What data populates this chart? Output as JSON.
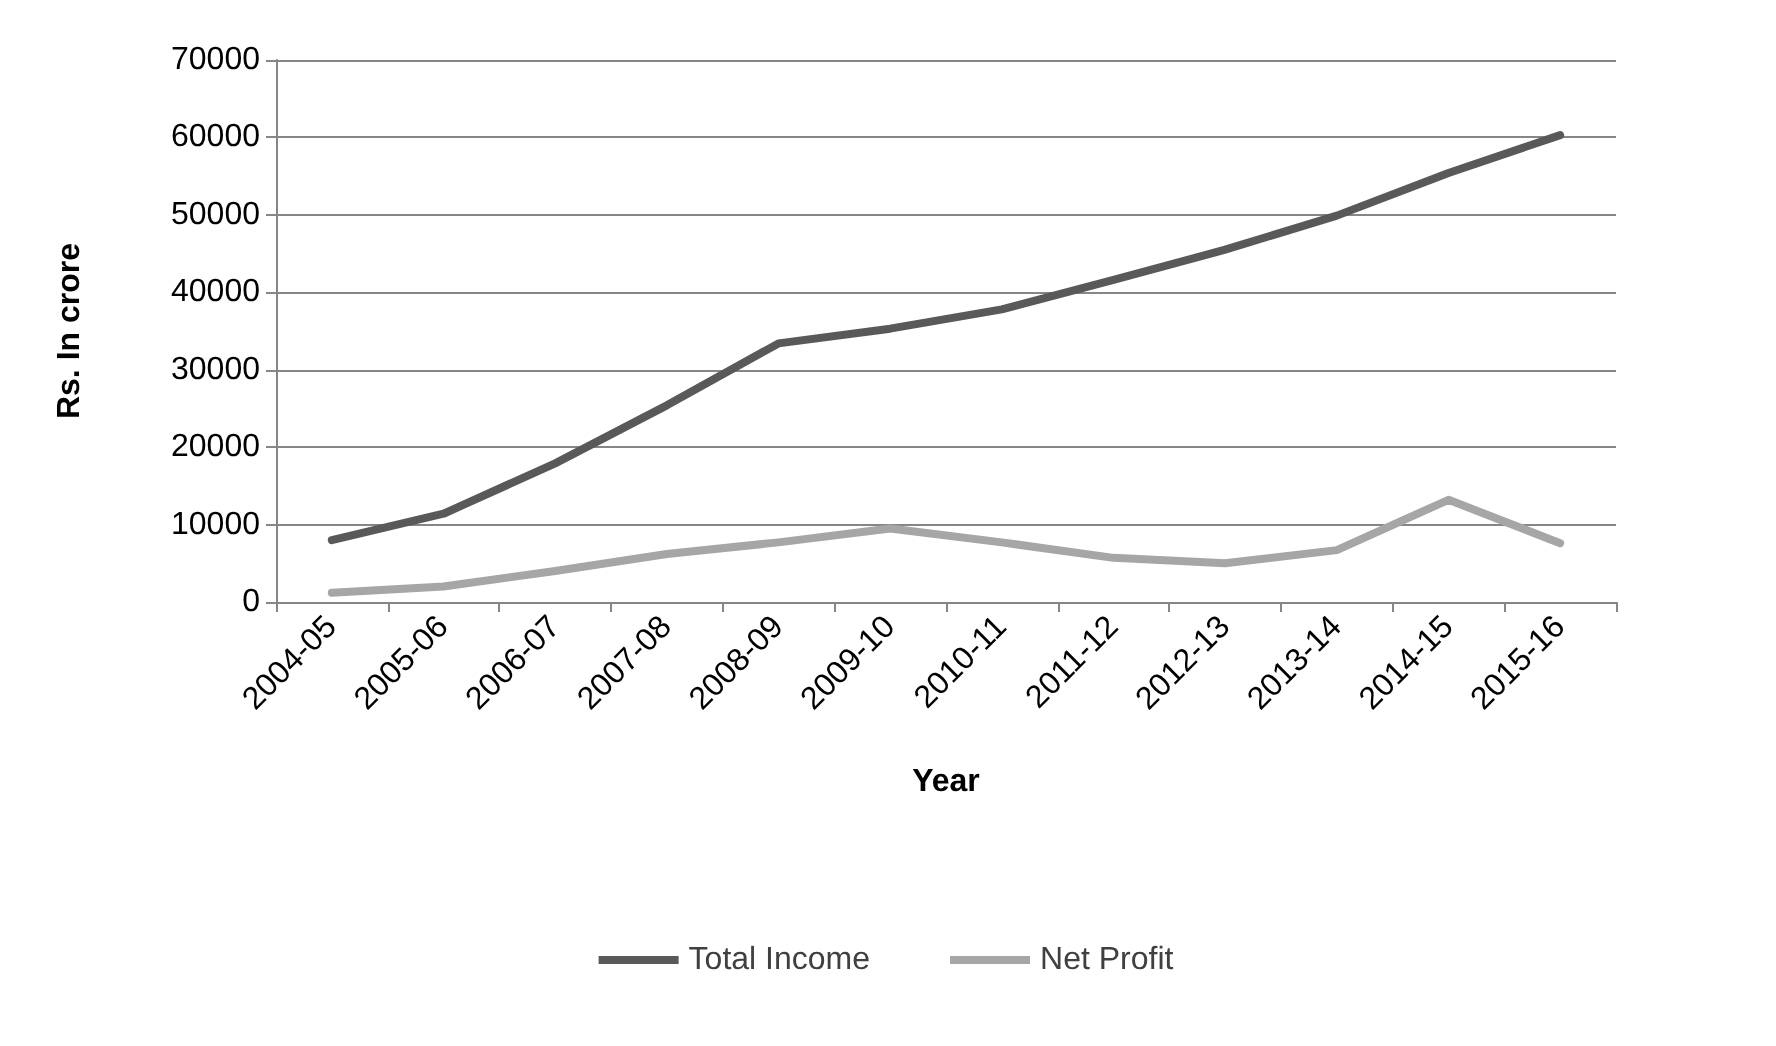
{
  "chart_data": {
    "type": "line",
    "xlabel": "Year",
    "ylabel": "Rs. In crore",
    "categories": [
      "2004-05",
      "2005-06",
      "2006-07",
      "2007-08",
      "2008-09",
      "2009-10",
      "2010-11",
      "2011-12",
      "2012-13",
      "2013-14",
      "2014-15",
      "2015-16"
    ],
    "series": [
      {
        "name": "Total Income",
        "color": "#595959",
        "values": [
          8000,
          11400,
          17900,
          25400,
          33400,
          35300,
          37800,
          41600,
          45500,
          49900,
          55400,
          60300
        ]
      },
      {
        "name": "Net Profit",
        "color": "#a6a6a6",
        "values": [
          1200,
          2000,
          4000,
          6200,
          7700,
          9500,
          7700,
          5700,
          5000,
          6700,
          13200,
          7600
        ]
      }
    ],
    "ylim": [
      0,
      70000
    ],
    "yticks": [
      0,
      10000,
      20000,
      30000,
      40000,
      50000,
      60000,
      70000
    ],
    "grid": "y",
    "legend": "bottom",
    "marker": "none",
    "line_style": "solid"
  }
}
